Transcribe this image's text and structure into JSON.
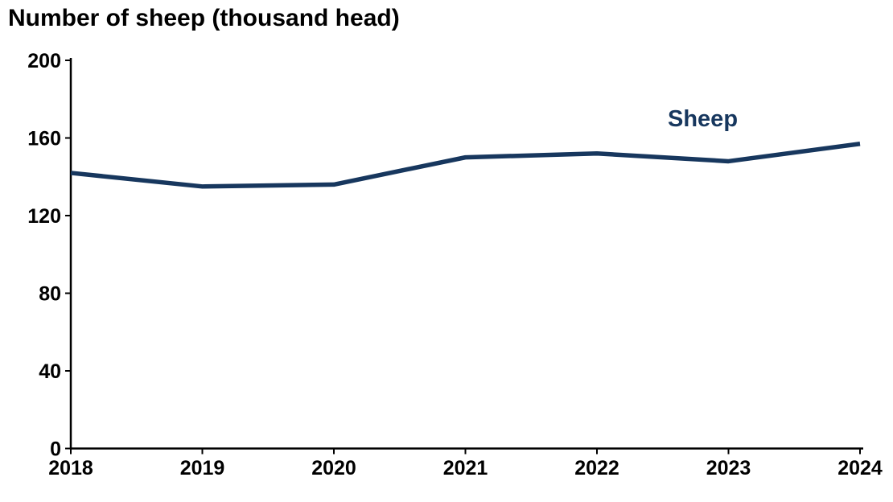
{
  "page": {
    "background": "#ffffff"
  },
  "chart_data": {
    "type": "line",
    "title": "Number of sheep (thousand head)",
    "categories": [
      "2018",
      "2019",
      "2020",
      "2021",
      "2022",
      "2023",
      "2024"
    ],
    "series": [
      {
        "name": "Sheep",
        "values": [
          142,
          135,
          136,
          150,
          152,
          148,
          157
        ],
        "color": "#17375E"
      }
    ],
    "xlabel": "",
    "ylabel": "",
    "ylim": [
      0,
      200
    ],
    "y_ticks": [
      0,
      40,
      80,
      120,
      160,
      200
    ],
    "grid": false,
    "legend_position": "inline-label-near-line-top-right",
    "axis_color": "#000000",
    "tick_label_color": "#000000",
    "title_color": "#000000"
  }
}
